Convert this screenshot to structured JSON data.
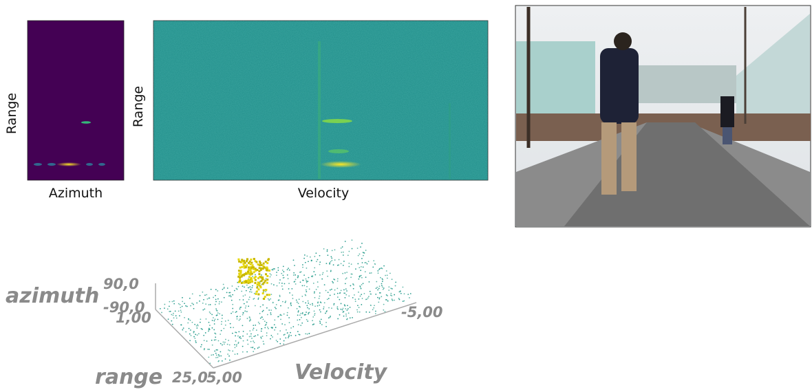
{
  "range_azimuth": {
    "y_label": "Range",
    "x_label": "Azimuth"
  },
  "range_doppler": {
    "y_label": "Range",
    "x_label": "Velocity"
  },
  "point_cloud": {
    "azimuth": {
      "label": "azimuth",
      "ticks": [
        "90,0",
        "-90,0"
      ]
    },
    "range": {
      "label": "range",
      "ticks": [
        "1,00",
        "25,0"
      ]
    },
    "velocity": {
      "label": "Velocity",
      "ticks": [
        "-5,00",
        "5,00"
      ]
    }
  }
}
